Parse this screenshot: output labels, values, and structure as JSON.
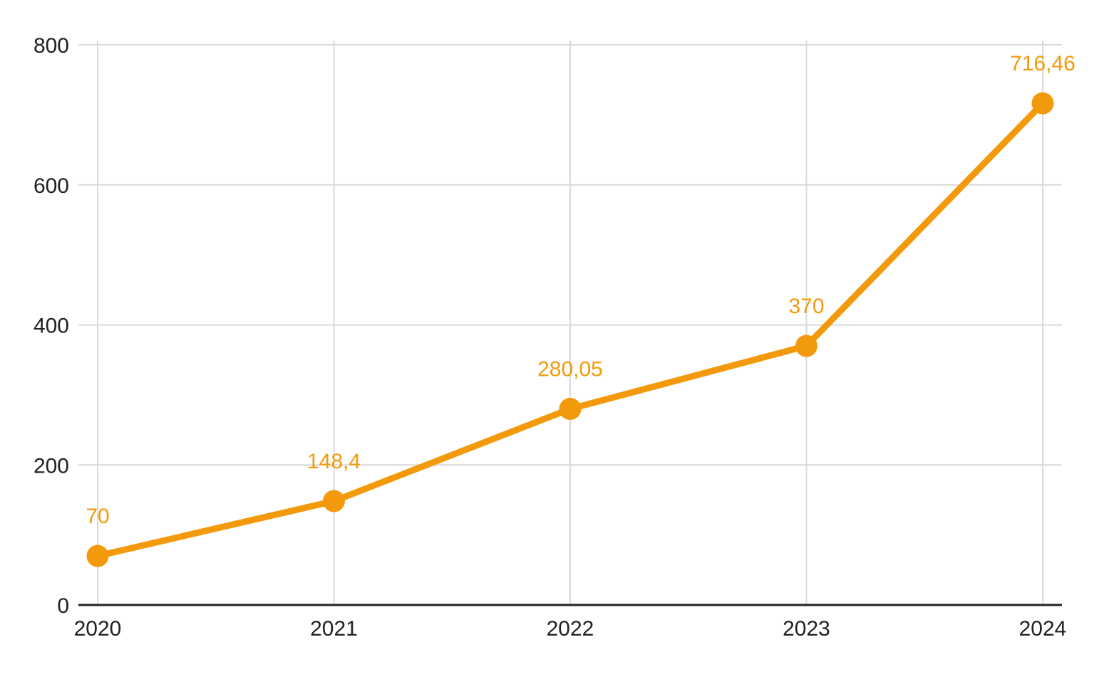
{
  "chart_data": {
    "type": "line",
    "title": "",
    "xlabel": "",
    "ylabel": "",
    "categories": [
      "2020",
      "2021",
      "2022",
      "2023",
      "2024"
    ],
    "values": [
      70,
      148.4,
      280.05,
      370,
      716.46
    ],
    "point_labels": [
      "70",
      "148,4",
      "280,05",
      "370",
      "716,46"
    ],
    "ylim": [
      0,
      800
    ],
    "yticks": [
      0,
      200,
      400,
      600,
      800
    ],
    "ytick_labels": [
      "0",
      "200",
      "400",
      "600",
      "800"
    ],
    "grid": true,
    "legend": "none",
    "colors": {
      "series": "#F29A0B",
      "grid": "#D9D9D9",
      "axis": "#212121",
      "tick_label": "#212121",
      "background": "#FFFFFF"
    }
  }
}
